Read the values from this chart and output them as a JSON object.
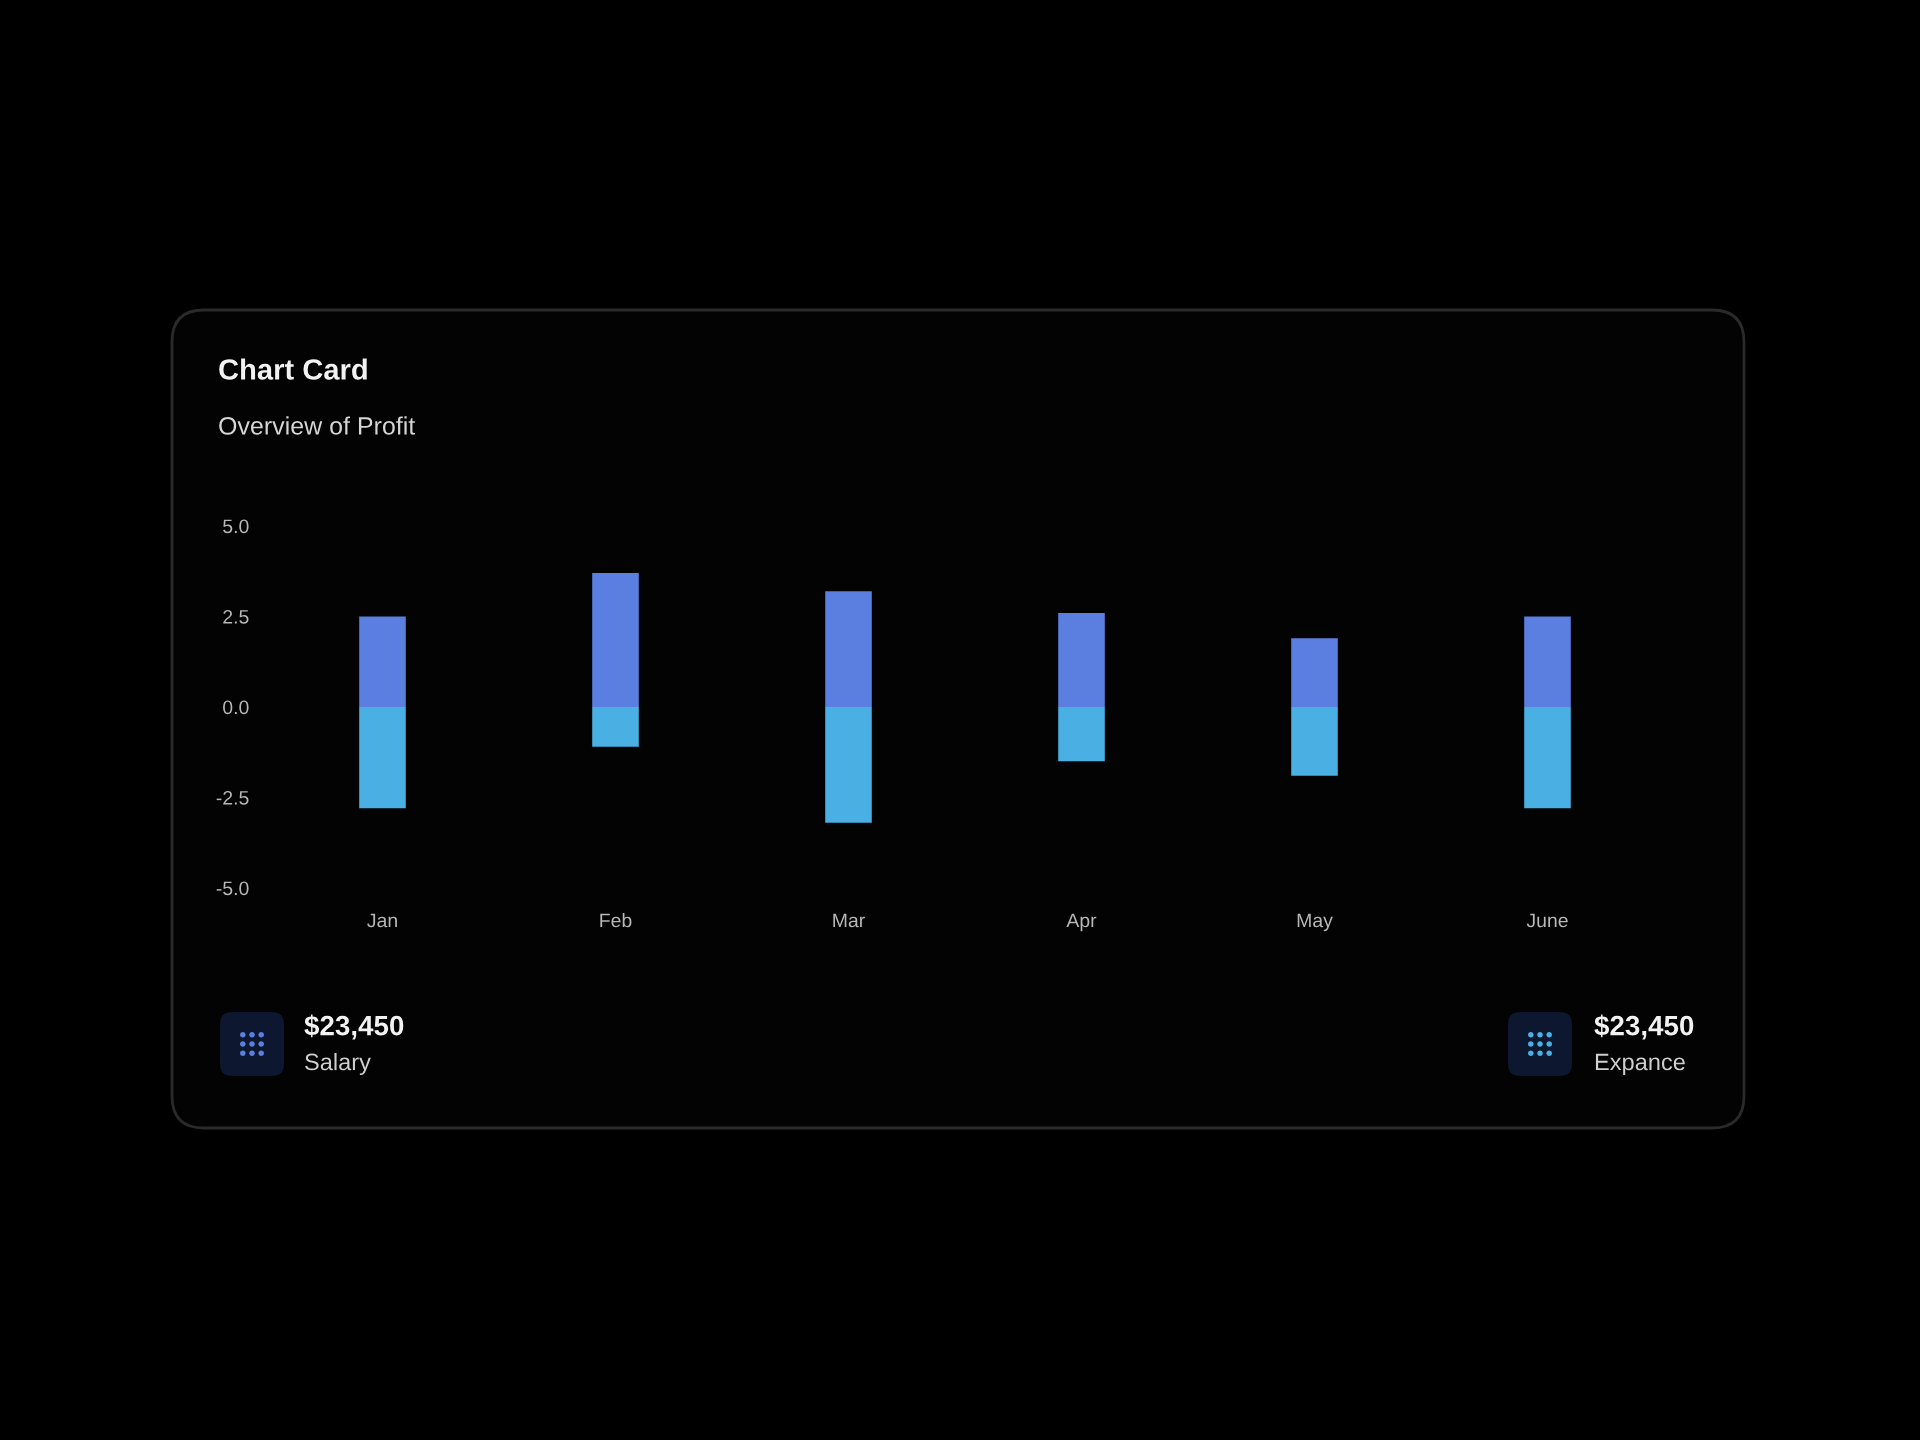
{
  "chart_data": {
    "type": "bar",
    "title": "Chart Card",
    "subtitle": "Overview of Profit",
    "categories": [
      "Jan",
      "Feb",
      "Mar",
      "Apr",
      "May",
      "June"
    ],
    "series": [
      {
        "color": "#5b7fe0",
        "values": [
          2.5,
          3.7,
          3.2,
          2.6,
          1.9,
          2.5
        ]
      },
      {
        "color": "#4aafe2",
        "values": [
          -2.8,
          -1.1,
          -3.2,
          -1.5,
          -1.9,
          -2.8
        ]
      }
    ],
    "stacked": true,
    "ylim": [
      -5,
      5
    ],
    "yticks": [
      {
        "value": 5,
        "label": "5.0"
      },
      {
        "value": 2.5,
        "label": "2.5"
      },
      {
        "value": 0,
        "label": "0.0"
      },
      {
        "value": -2.5,
        "label": "-2.5"
      },
      {
        "value": -5,
        "label": "-5.0"
      }
    ],
    "annotations": [
      "$23,450",
      "Salary",
      "$23,450",
      "Expance"
    ]
  }
}
